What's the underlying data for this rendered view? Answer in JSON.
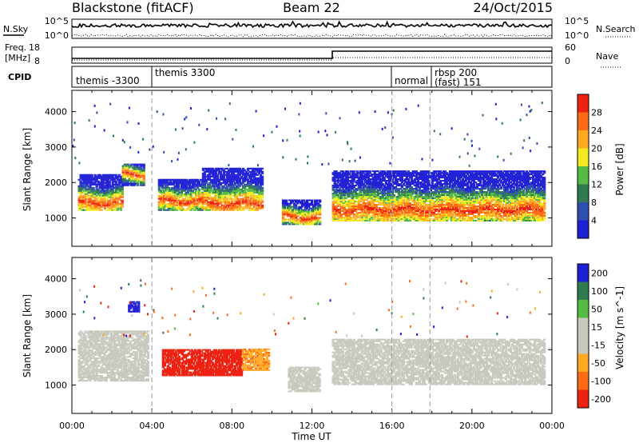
{
  "header": {
    "station": "Blackstone (fitACF)",
    "beam": "Beam 22",
    "date": "24/Oct/2015"
  },
  "noise_panel": {
    "left_label": "N.Sky",
    "right_label": "N.Search",
    "top_tick": "10^5",
    "bottom_tick": "10^0"
  },
  "freq_panel": {
    "left_label_line1": "Freq.",
    "left_label_line2": "[MHz]",
    "left_top_tick": "18",
    "left_bottom_tick": "8",
    "right_label": "Nave",
    "right_top_tick": "60",
    "right_bottom_tick": "0"
  },
  "cpid_panel": {
    "label": "CPID",
    "segments": [
      {
        "text": "themis -3300"
      },
      {
        "text": "themis 3300"
      },
      {
        "text": "normal"
      },
      {
        "text_line1": "rbsp 200",
        "text_line2": "(fast) 151"
      }
    ]
  },
  "colors": {
    "power_scale": [
      "#1f1fd6",
      "#2f4fb0",
      "#2f7a50",
      "#55bb44",
      "#f2ea1f",
      "#ffaa22",
      "#ff6a14",
      "#ee2212"
    ],
    "velocity_scale": [
      "#ee2212",
      "#ff6a14",
      "#ffaa22",
      "#c8c8be",
      "#c8c8be",
      "#55bb44",
      "#2f7a50",
      "#1f1fd6"
    ],
    "ground_scatter": "#c8c8be"
  },
  "chart_data": [
    {
      "type": "heatmap",
      "title": "",
      "ylabel": "Slant Range [km]",
      "ylim": [
        200,
        4600
      ],
      "yticks": [
        "1000",
        "2000",
        "3000",
        "4000"
      ],
      "colorbar_label": "Power [dB]",
      "colorbar_ticks": [
        "4",
        "8",
        "12",
        "16",
        "20",
        "24",
        "28"
      ],
      "colorbar_range": [
        0,
        32
      ],
      "band_segments": [
        {
          "x0": 0.3,
          "x1": 2.5,
          "lo": 1200,
          "hi": 2200,
          "center": 1400
        },
        {
          "x0": 2.5,
          "x1": 3.6,
          "lo": 1900,
          "hi": 2500,
          "center": 2200
        },
        {
          "x0": 4.3,
          "x1": 6.5,
          "lo": 1200,
          "hi": 2100,
          "center": 1450
        },
        {
          "x0": 6.5,
          "x1": 9.5,
          "lo": 1200,
          "hi": 2400,
          "center": 1380
        },
        {
          "x0": 10.5,
          "x1": 12.4,
          "lo": 800,
          "hi": 1500,
          "center": 1000
        },
        {
          "x0": 13.0,
          "x1": 23.6,
          "lo": 900,
          "hi": 2300,
          "center": 1200
        }
      ]
    },
    {
      "type": "heatmap",
      "title": "",
      "xlabel": "Time UT",
      "ylabel": "Slant Range [km]",
      "ylim": [
        200,
        4600
      ],
      "yticks": [
        "1000",
        "2000",
        "3000",
        "4000"
      ],
      "xticks": [
        "00:00",
        "04:00",
        "08:00",
        "12:00",
        "16:00",
        "20:00",
        "00:00"
      ],
      "xlim": [
        0,
        24
      ],
      "colorbar_label": "Velocity [m s^-1]",
      "colorbar_ticks": [
        "200",
        "100",
        "50",
        "15",
        "-15",
        "-50",
        "-100",
        "-200"
      ],
      "colorbar_range": [
        -200,
        200
      ],
      "ground_scatter_regions": [
        {
          "x0": 0.3,
          "x1": 3.8,
          "lo": 1100,
          "hi": 2500
        },
        {
          "x0": 10.8,
          "x1": 12.4,
          "lo": 800,
          "hi": 1500
        },
        {
          "x0": 13.0,
          "x1": 23.6,
          "lo": 1000,
          "hi": 2300
        }
      ],
      "velocity_regions": [
        {
          "x0": 4.5,
          "x1": 8.5,
          "lo": 1250,
          "hi": 2000,
          "velocity": -180
        },
        {
          "x0": 8.5,
          "x1": 9.8,
          "lo": 1400,
          "hi": 2000,
          "velocity": -60
        },
        {
          "x0": 2.8,
          "x1": 3.3,
          "lo": 3050,
          "hi": 3350,
          "velocity": 200
        }
      ]
    }
  ],
  "scan_boundaries_hours": [
    4.0,
    16.0,
    17.9
  ]
}
